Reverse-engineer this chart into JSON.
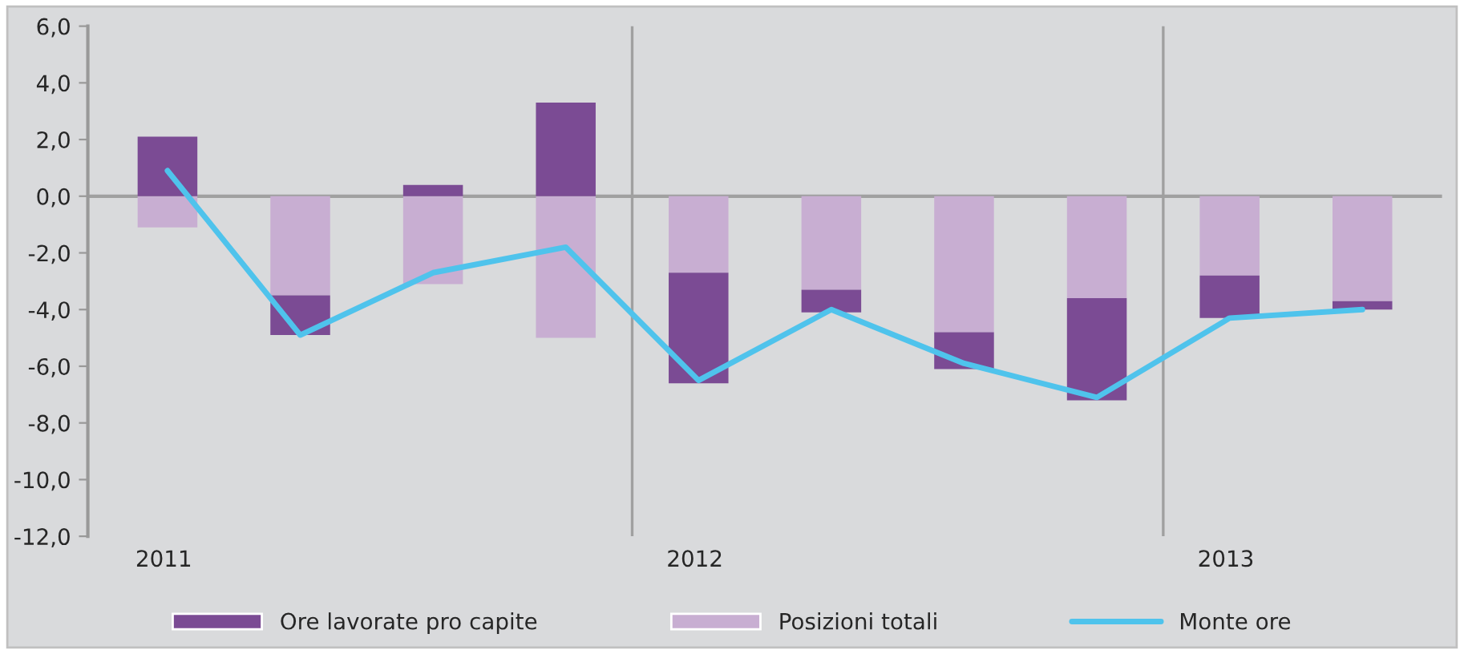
{
  "chart_data": {
    "type": "bar",
    "stacked": true,
    "categories": [
      "2011",
      null,
      null,
      null,
      "2012",
      null,
      null,
      null,
      "2013",
      null
    ],
    "series": [
      {
        "name": "Posizioni totali",
        "color": "#c8aed2",
        "values": [
          -1.1,
          -3.5,
          -3.1,
          -5.0,
          -2.7,
          -3.3,
          -4.8,
          -3.6,
          -2.8,
          -3.7
        ]
      },
      {
        "name": "Ore lavorate pro capite",
        "color": "#7b4b94",
        "values": [
          2.1,
          -1.4,
          0.4,
          3.3,
          -3.9,
          -0.8,
          -1.3,
          -3.6,
          -1.5,
          -0.3
        ]
      },
      {
        "name": "Monte ore",
        "type": "line",
        "color": "#4fc3ec",
        "values": [
          0.9,
          -4.9,
          -2.7,
          -1.8,
          -6.5,
          -4.0,
          -5.9,
          -7.1,
          -4.3,
          -4.0
        ]
      }
    ],
    "ylim": [
      -12,
      6
    ],
    "yticks": [
      {
        "value": -12,
        "label": "-12,0"
      },
      {
        "value": -10,
        "label": "-10,0"
      },
      {
        "value": -8,
        "label": "-8,0"
      },
      {
        "value": -6,
        "label": "-6,0"
      },
      {
        "value": -4,
        "label": "-4,0"
      },
      {
        "value": -2,
        "label": "-2,0"
      },
      {
        "value": 0,
        "label": "0,0"
      },
      {
        "value": 2,
        "label": "2,0"
      },
      {
        "value": 4,
        "label": "4,0"
      },
      {
        "value": 6,
        "label": "6,0"
      }
    ],
    "grid": false,
    "legend": "bottom",
    "marker": "none",
    "line_style": "solid"
  }
}
